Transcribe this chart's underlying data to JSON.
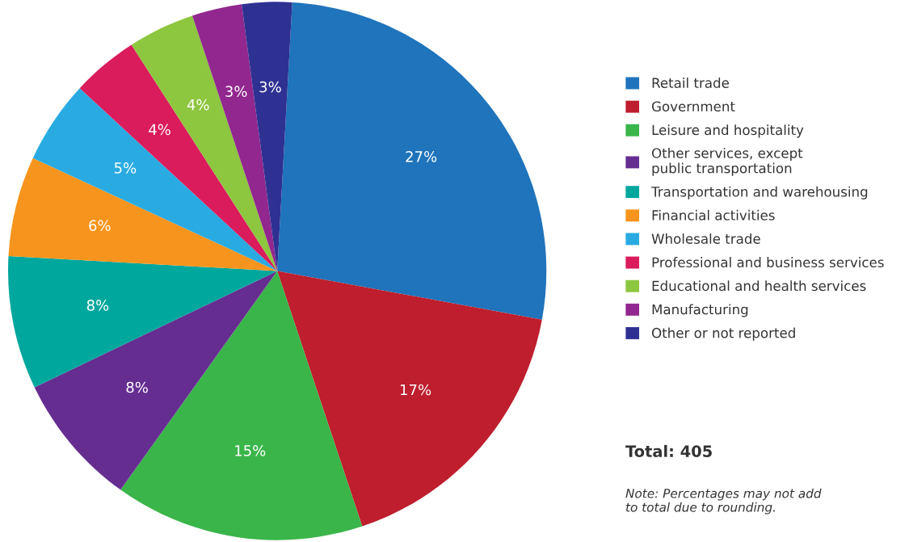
{
  "chart_data": {
    "type": "pie",
    "categories": [
      "Retail trade",
      "Government",
      "Leisure and hospitality",
      "Other services, except\npublic transportation",
      "Transportation and warehousing",
      "Financial activities",
      "Wholesale trade",
      "Professional and business services",
      "Educational and health services",
      "Manufacturing",
      "Other or not reported"
    ],
    "values": [
      27,
      17,
      15,
      8,
      8,
      6,
      5,
      4,
      4,
      3,
      3
    ],
    "value_labels": [
      "27%",
      "17%",
      "15%",
      "8%",
      "8%",
      "6%",
      "5%",
      "4%",
      "4%",
      "3%",
      "3%"
    ],
    "colors": [
      "#1f74bb",
      "#be1e2d",
      "#3ab54a",
      "#662d91",
      "#00a79d",
      "#f7941d",
      "#29abe2",
      "#da1c5c",
      "#8dc63f",
      "#92278f",
      "#2e3192"
    ],
    "legend": "right",
    "annotations": [
      "Total: 405",
      "Note: Percentages may not add\nto total due to rounding."
    ]
  }
}
